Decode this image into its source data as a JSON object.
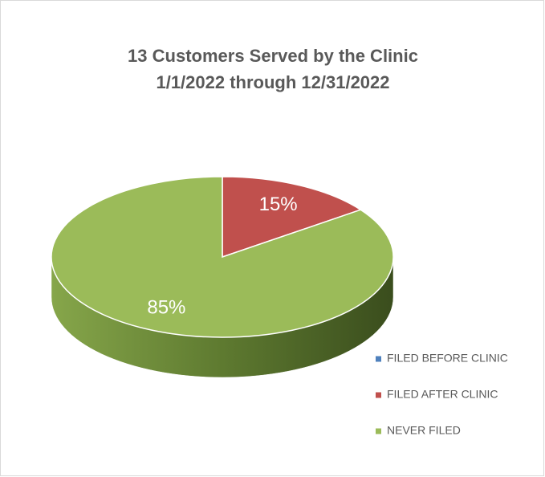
{
  "chart_data": {
    "type": "pie3d",
    "title": "13 Customers Served by the Clinic",
    "subtitle": "1/1/2022 through 12/31/2022",
    "categories": [
      "FILED BEFORE CLINIC",
      "FILED AFTER CLINIC",
      "NEVER FILED"
    ],
    "values": [
      0,
      15,
      85
    ],
    "value_labels": [
      null,
      "15%",
      "85%"
    ],
    "colors": [
      "#4f81bd",
      "#c0504d",
      "#9bbb59"
    ],
    "legend": "right"
  }
}
